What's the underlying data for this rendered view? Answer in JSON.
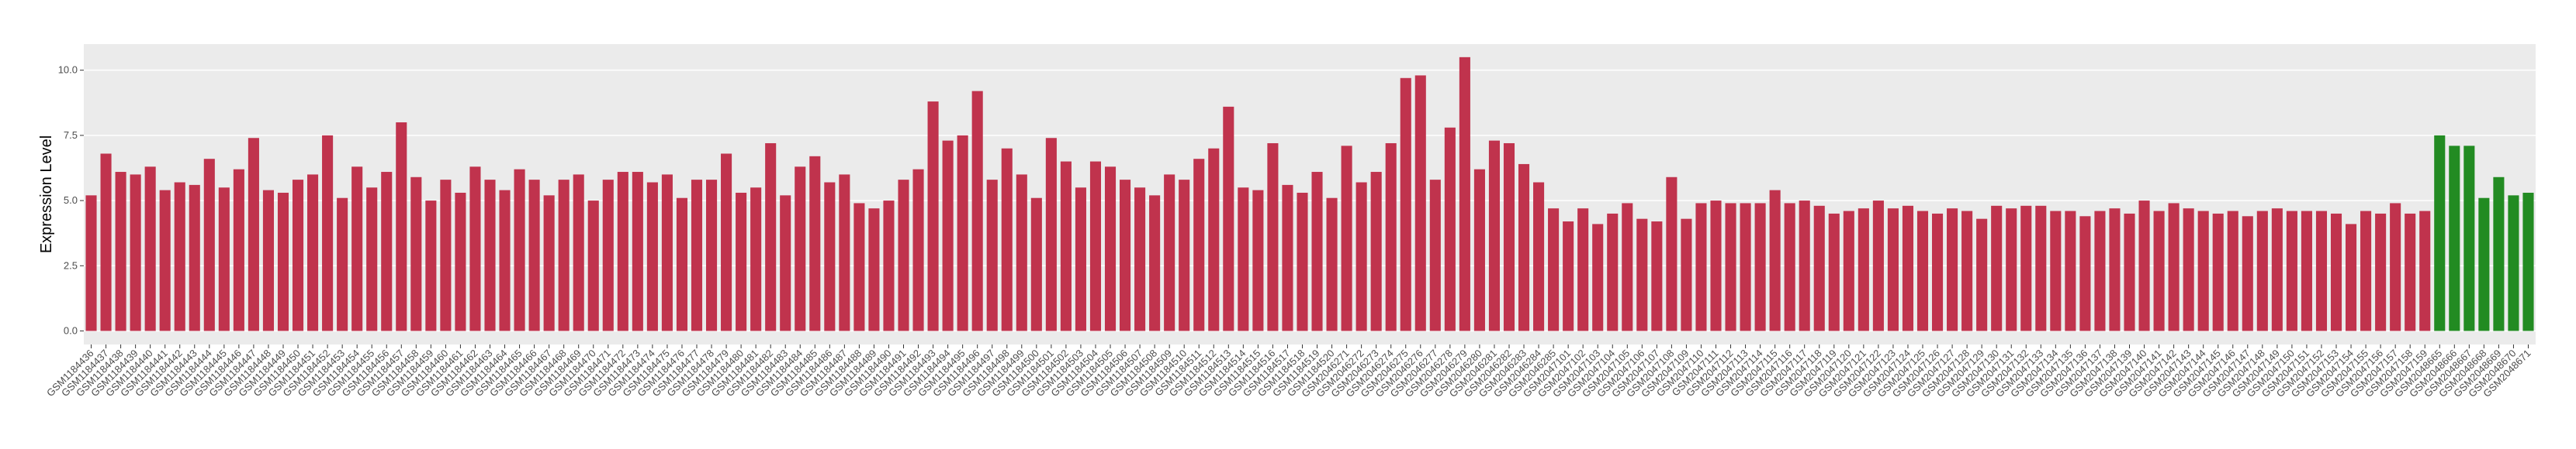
{
  "chart_data": {
    "type": "bar",
    "y_label": "Expression Level",
    "categories": [
      "GSM1184436",
      "GSM1184437",
      "GSM1184438",
      "GSM1184439",
      "GSM1184440",
      "GSM1184441",
      "GSM1184442",
      "GSM1184443",
      "GSM1184444",
      "GSM1184445",
      "GSM1184446",
      "GSM1184447",
      "GSM1184448",
      "GSM1184449",
      "GSM1184450",
      "GSM1184451",
      "GSM1184452",
      "GSM1184453",
      "GSM1184454",
      "GSM1184455",
      "GSM1184456",
      "GSM1184457",
      "GSM1184458",
      "GSM1184459",
      "GSM1184460",
      "GSM1184461",
      "GSM1184462",
      "GSM1184463",
      "GSM1184464",
      "GSM1184465",
      "GSM1184466",
      "GSM1184467",
      "GSM1184468",
      "GSM1184469",
      "GSM1184470",
      "GSM1184471",
      "GSM1184472",
      "GSM1184473",
      "GSM1184474",
      "GSM1184475",
      "GSM1184476",
      "GSM1184477",
      "GSM1184478",
      "GSM1184479",
      "GSM1184480",
      "GSM1184481",
      "GSM1184482",
      "GSM1184483",
      "GSM1184484",
      "GSM1184485",
      "GSM1184486",
      "GSM1184487",
      "GSM1184488",
      "GSM1184489",
      "GSM1184490",
      "GSM1184491",
      "GSM1184492",
      "GSM1184493",
      "GSM1184494",
      "GSM1184495",
      "GSM1184496",
      "GSM1184497",
      "GSM1184498",
      "GSM1184499",
      "GSM1184500",
      "GSM1184501",
      "GSM1184502",
      "GSM1184503",
      "GSM1184504",
      "GSM1184505",
      "GSM1184506",
      "GSM1184507",
      "GSM1184508",
      "GSM1184509",
      "GSM1184510",
      "GSM1184511",
      "GSM1184512",
      "GSM1184513",
      "GSM1184514",
      "GSM1184515",
      "GSM1184516",
      "GSM1184517",
      "GSM1184518",
      "GSM1184519",
      "GSM1184520",
      "GSM2046271",
      "GSM2046272",
      "GSM2046273",
      "GSM2046274",
      "GSM2046275",
      "GSM2046276",
      "GSM2046277",
      "GSM2046278",
      "GSM2046279",
      "GSM2046280",
      "GSM2046281",
      "GSM2046282",
      "GSM2046283",
      "GSM2046284",
      "GSM2046285",
      "GSM2047101",
      "GSM2047102",
      "GSM2047103",
      "GSM2047104",
      "GSM2047105",
      "GSM2047106",
      "GSM2047107",
      "GSM2047108",
      "GSM2047109",
      "GSM2047110",
      "GSM2047111",
      "GSM2047112",
      "GSM2047113",
      "GSM2047114",
      "GSM2047115",
      "GSM2047116",
      "GSM2047117",
      "GSM2047118",
      "GSM2047119",
      "GSM2047120",
      "GSM2047121",
      "GSM2047122",
      "GSM2047123",
      "GSM2047124",
      "GSM2047125",
      "GSM2047126",
      "GSM2047127",
      "GSM2047128",
      "GSM2047129",
      "GSM2047130",
      "GSM2047131",
      "GSM2047132",
      "GSM2047133",
      "GSM2047134",
      "GSM2047135",
      "GSM2047136",
      "GSM2047137",
      "GSM2047138",
      "GSM2047139",
      "GSM2047140",
      "GSM2047141",
      "GSM2047142",
      "GSM2047143",
      "GSM2047144",
      "GSM2047145",
      "GSM2047146",
      "GSM2047147",
      "GSM2047148",
      "GSM2047149",
      "GSM2047150",
      "GSM2047151",
      "GSM2047152",
      "GSM2047153",
      "GSM2047154",
      "GSM2047155",
      "GSM2047156",
      "GSM2047157",
      "GSM2047158",
      "GSM2047159",
      "GSM2048665",
      "GSM2048666",
      "GSM2048667",
      "GSM2048668",
      "GSM2048669",
      "GSM2048670",
      "GSM2048671"
    ],
    "values": [
      5.2,
      6.8,
      6.1,
      6.0,
      6.3,
      5.4,
      5.7,
      5.6,
      6.6,
      5.5,
      6.2,
      7.4,
      5.4,
      5.3,
      5.8,
      6.0,
      7.5,
      5.1,
      6.3,
      5.5,
      6.1,
      8.0,
      5.9,
      5.0,
      5.8,
      5.3,
      6.3,
      5.8,
      5.4,
      6.2,
      5.8,
      5.2,
      5.8,
      6.0,
      5.0,
      5.8,
      6.1,
      6.1,
      5.7,
      6.0,
      5.1,
      5.8,
      5.8,
      6.8,
      5.3,
      5.5,
      7.2,
      5.2,
      6.3,
      6.7,
      5.7,
      6.0,
      4.9,
      4.7,
      5.0,
      5.8,
      6.2,
      8.8,
      7.3,
      7.5,
      9.2,
      5.8,
      7.0,
      6.0,
      5.1,
      7.4,
      6.5,
      5.5,
      6.5,
      6.3,
      5.8,
      5.5,
      5.2,
      6.0,
      5.8,
      6.6,
      7.0,
      8.6,
      5.5,
      5.4,
      7.2,
      5.6,
      5.3,
      6.1,
      5.1,
      7.1,
      5.7,
      6.1,
      7.2,
      9.7,
      9.8,
      5.8,
      7.8,
      10.5,
      6.2,
      7.3,
      7.2,
      6.4,
      5.7,
      4.7,
      4.2,
      4.7,
      4.1,
      4.5,
      4.9,
      4.3,
      4.2,
      5.9,
      4.3,
      4.9,
      5.0,
      4.9,
      4.9,
      4.9,
      5.4,
      4.9,
      5.0,
      4.8,
      4.5,
      4.6,
      4.7,
      5.0,
      4.7,
      4.8,
      4.6,
      4.5,
      4.7,
      4.6,
      4.3,
      4.8,
      4.7,
      4.8,
      4.8,
      4.6,
      4.6,
      4.4,
      4.6,
      4.7,
      4.5,
      5.0,
      4.6,
      4.9,
      4.7,
      4.6,
      4.5,
      4.6,
      4.4,
      4.6,
      4.7,
      4.6,
      4.6,
      4.6,
      4.5,
      4.1,
      4.6,
      4.5,
      4.9,
      4.5,
      4.6,
      7.5,
      7.1,
      7.1,
      5.1,
      5.9,
      5.2,
      5.3
    ],
    "colors": [
      "#c0334d",
      "#c0334d",
      "#c0334d",
      "#c0334d",
      "#c0334d",
      "#c0334d",
      "#c0334d",
      "#c0334d",
      "#c0334d",
      "#c0334d",
      "#c0334d",
      "#c0334d",
      "#c0334d",
      "#c0334d",
      "#c0334d",
      "#c0334d",
      "#c0334d",
      "#c0334d",
      "#c0334d",
      "#c0334d",
      "#c0334d",
      "#c0334d",
      "#c0334d",
      "#c0334d",
      "#c0334d",
      "#c0334d",
      "#c0334d",
      "#c0334d",
      "#c0334d",
      "#c0334d",
      "#c0334d",
      "#c0334d",
      "#c0334d",
      "#c0334d",
      "#c0334d",
      "#c0334d",
      "#c0334d",
      "#c0334d",
      "#c0334d",
      "#c0334d",
      "#c0334d",
      "#c0334d",
      "#c0334d",
      "#c0334d",
      "#c0334d",
      "#c0334d",
      "#c0334d",
      "#c0334d",
      "#c0334d",
      "#c0334d",
      "#c0334d",
      "#c0334d",
      "#c0334d",
      "#c0334d",
      "#c0334d",
      "#c0334d",
      "#c0334d",
      "#c0334d",
      "#c0334d",
      "#c0334d",
      "#c0334d",
      "#c0334d",
      "#c0334d",
      "#c0334d",
      "#c0334d",
      "#c0334d",
      "#c0334d",
      "#c0334d",
      "#c0334d",
      "#c0334d",
      "#c0334d",
      "#c0334d",
      "#c0334d",
      "#c0334d",
      "#c0334d",
      "#c0334d",
      "#c0334d",
      "#c0334d",
      "#c0334d",
      "#c0334d",
      "#c0334d",
      "#c0334d",
      "#c0334d",
      "#c0334d",
      "#c0334d",
      "#c0334d",
      "#c0334d",
      "#c0334d",
      "#c0334d",
      "#c0334d",
      "#c0334d",
      "#c0334d",
      "#c0334d",
      "#c0334d",
      "#c0334d",
      "#c0334d",
      "#c0334d",
      "#c0334d",
      "#c0334d",
      "#c0334d",
      "#c0334d",
      "#c0334d",
      "#c0334d",
      "#c0334d",
      "#c0334d",
      "#c0334d",
      "#c0334d",
      "#c0334d",
      "#c0334d",
      "#c0334d",
      "#c0334d",
      "#c0334d",
      "#c0334d",
      "#c0334d",
      "#c0334d",
      "#c0334d",
      "#c0334d",
      "#c0334d",
      "#c0334d",
      "#c0334d",
      "#c0334d",
      "#c0334d",
      "#c0334d",
      "#c0334d",
      "#c0334d",
      "#c0334d",
      "#c0334d",
      "#c0334d",
      "#c0334d",
      "#c0334d",
      "#c0334d",
      "#c0334d",
      "#c0334d",
      "#c0334d",
      "#c0334d",
      "#c0334d",
      "#c0334d",
      "#c0334d",
      "#c0334d",
      "#c0334d",
      "#c0334d",
      "#c0334d",
      "#c0334d",
      "#c0334d",
      "#c0334d",
      "#c0334d",
      "#c0334d",
      "#c0334d",
      "#c0334d",
      "#c0334d",
      "#c0334d",
      "#c0334d",
      "#c0334d",
      "#c0334d",
      "#c0334d",
      "#c0334d",
      "#c0334d",
      "#c0334d",
      "#c0334d",
      "#228b22",
      "#228b22",
      "#228b22",
      "#228b22",
      "#228b22",
      "#228b22",
      "#228b22"
    ],
    "ylim": [
      -0.52,
      11.0
    ],
    "yticks": [
      {
        "value": 0,
        "label": "0.0"
      },
      {
        "value": 2.5,
        "label": "2.5"
      },
      {
        "value": 5,
        "label": "5.0"
      },
      {
        "value": 7.5,
        "label": "7.5"
      },
      {
        "value": 10,
        "label": "10.0"
      }
    ],
    "grid": true
  }
}
